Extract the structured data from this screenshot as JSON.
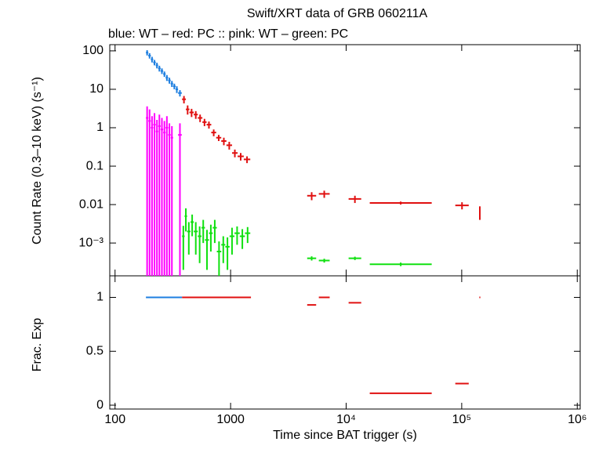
{
  "chart_data": [
    {
      "type": "errorbar",
      "title": "Swift/XRT data of GRB 060211A",
      "subtitle": "blue: WT  – red: PC  :: pink: WT  – green: PC",
      "y_label": "Count Rate (0.3–10 keV) (s⁻¹)",
      "log_x": true,
      "log_y": true,
      "xlim": [
        90,
        1060000
      ],
      "ylim": [
        0.00014,
        145
      ],
      "yticks": [
        100,
        10,
        1,
        0.1,
        0.01,
        {
          "value": 0.001,
          "label": "10⁻³"
        }
      ],
      "series": [
        {
          "color": "#ff00ff",
          "x_lo": [
            185,
            194,
            204,
            214,
            225,
            236,
            248,
            261,
            274,
            288,
            303,
            351
          ],
          "x_hi": [
            194,
            204,
            214,
            225,
            236,
            248,
            261,
            274,
            288,
            303,
            318,
            378
          ],
          "values": [
            1.8,
            1.5,
            1.0,
            1.2,
            0.8,
            1.1,
            0.9,
            0.75,
            1.0,
            0.65,
            0.55,
            0.65
          ],
          "errors": [
            1.8,
            1.5,
            1.0,
            1.2,
            0.8,
            1.1,
            0.9,
            0.75,
            1.0,
            0.65,
            0.55,
            0.65
          ]
        },
        {
          "color": "#1e7fe0",
          "x_lo": [
            185,
            194,
            204,
            214,
            225,
            236,
            248,
            261,
            274,
            288,
            303,
            318,
            334,
            351
          ],
          "x_hi": [
            194,
            204,
            214,
            225,
            236,
            248,
            261,
            274,
            288,
            303,
            318,
            334,
            351,
            378
          ],
          "values": [
            90,
            75,
            60,
            50,
            42,
            35,
            30,
            25,
            20,
            17,
            14,
            12,
            10,
            8
          ],
          "errors": [
            14,
            12,
            10,
            8,
            7,
            6,
            5,
            4,
            3.5,
            3,
            2.5,
            2,
            2,
            1.5
          ]
        },
        {
          "color": "#e01010",
          "x_lo": [
            380,
            410,
            440,
            480,
            520,
            570,
            620,
            680,
            750,
            830,
            920,
            1030,
            1150,
            1300,
            4600,
            5800,
            10500,
            16000,
            88000,
            142000
          ],
          "x_hi": [
            410,
            440,
            480,
            520,
            570,
            620,
            680,
            750,
            830,
            920,
            1030,
            1150,
            1300,
            1480,
            5500,
            7200,
            13500,
            55000,
            115000,
            145000
          ],
          "values": [
            5.5,
            3.0,
            2.5,
            2.2,
            1.8,
            1.4,
            1.2,
            0.75,
            0.55,
            0.45,
            0.35,
            0.22,
            0.18,
            0.15,
            0.017,
            0.019,
            0.014,
            0.011,
            0.0095,
            0.0065
          ],
          "errors": [
            1.2,
            0.8,
            0.6,
            0.5,
            0.4,
            0.3,
            0.25,
            0.15,
            0.1,
            0.1,
            0.08,
            0.05,
            0.04,
            0.03,
            0.004,
            0.004,
            0.003,
            0.001,
            0.002,
            0.0025
          ]
        },
        {
          "color": "#10e010",
          "x_lo": [
            380,
            400,
            420,
            450,
            480,
            520,
            560,
            600,
            650,
            700,
            760,
            830,
            900,
            980,
            1080,
            1200,
            1330,
            4600,
            5800,
            10500,
            16000
          ],
          "x_hi": [
            400,
            420,
            450,
            480,
            520,
            560,
            600,
            650,
            700,
            760,
            830,
            900,
            980,
            1080,
            1200,
            1330,
            1480,
            5500,
            7200,
            13500,
            55000
          ],
          "values": [
            0.0015,
            0.005,
            0.002,
            0.0035,
            0.002,
            0.0015,
            0.0025,
            0.0012,
            0.0018,
            0.0025,
            0.0006,
            0.0009,
            0.0008,
            0.0015,
            0.0018,
            0.0015,
            0.0018,
            0.0004,
            0.00035,
            0.0004,
            0.00028
          ],
          "errors": [
            0.0013,
            0.003,
            0.0015,
            0.002,
            0.0015,
            0.0012,
            0.0015,
            0.001,
            0.0012,
            0.0015,
            0.0005,
            0.0006,
            0.0006,
            0.001,
            0.0009,
            0.0008,
            0.0008,
            5e-05,
            4e-05,
            4e-05,
            3e-05
          ]
        }
      ]
    },
    {
      "type": "errorbar",
      "x_label": "Time since BAT trigger (s)",
      "y_label": "Frac. Exp",
      "log_x": true,
      "log_y": false,
      "xlim": [
        90,
        1060000
      ],
      "ylim": [
        -0.036,
        1.2
      ],
      "xticks": [
        100,
        1000,
        {
          "value": 10000,
          "label": "10⁴"
        },
        {
          "value": 100000,
          "label": "10⁵"
        },
        {
          "value": 1000000,
          "label": "10⁶"
        }
      ],
      "yticks": [
        0,
        0.5,
        1
      ],
      "series": [
        {
          "color": "#1e7fe0",
          "x_lo": [
            185
          ],
          "x_hi": [
            380
          ],
          "values": [
            1
          ]
        },
        {
          "color": "#e01010",
          "x_lo": [
            380,
            4600,
            5800,
            10500,
            16000,
            88000,
            142000
          ],
          "x_hi": [
            1500,
            5500,
            7200,
            13500,
            55000,
            115000,
            145000
          ],
          "values": [
            1,
            0.93,
            1,
            0.95,
            0.11,
            0.2,
            1
          ]
        }
      ]
    }
  ]
}
